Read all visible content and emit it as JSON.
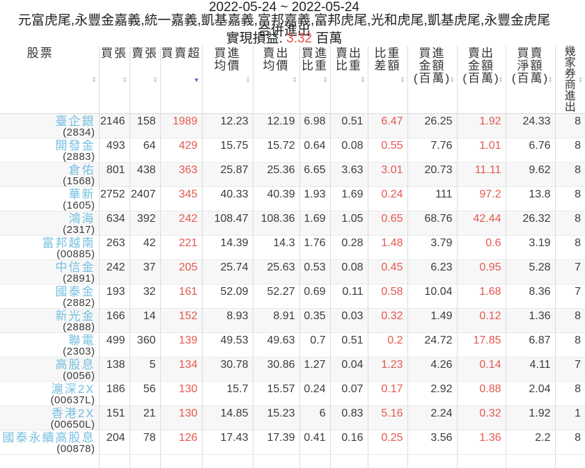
{
  "header": {
    "date_range": "2022-05-24 ~ 2022-05-24",
    "brokers": "元富虎尾,永豐金嘉義,統一嘉義,凱基嘉義,富邦嘉義,富邦虎尾,光和虎尾,凱基虎尾,永豐金虎尾",
    "merged_title": "合併進出",
    "profit_label": "實現損益:",
    "profit_value": "3.32",
    "profit_unit": "百萬"
  },
  "colors": {
    "negative_red": "#e6574f",
    "stock_link_blue": "#76bfe0",
    "active_sort_indigo": "#5b66c4",
    "stripe_gray": "#f7f7f7"
  },
  "table": {
    "red_value_indices": [
      2,
      7,
      9
    ],
    "columns": [
      {
        "key": "stock",
        "label": "股票",
        "sort": "none"
      },
      {
        "key": "buy_lots",
        "label": "買張",
        "sort": "none"
      },
      {
        "key": "sell_lots",
        "label": "賣張",
        "sort": "none"
      },
      {
        "key": "net_lots",
        "label": "買賣超",
        "sort": "desc"
      },
      {
        "key": "avg_buy_price",
        "label": "買進\n均價",
        "sort": "none"
      },
      {
        "key": "avg_sell_price",
        "label": "賣出\n均價",
        "sort": "none"
      },
      {
        "key": "buy_weight",
        "label": "買進\n比重",
        "sort": "none"
      },
      {
        "key": "sell_weight",
        "label": "賣出\n比重",
        "sort": "none"
      },
      {
        "key": "weight_diff",
        "label": "比重\n差額",
        "sort": "none"
      },
      {
        "key": "buy_amount",
        "label": "買進\n金額\n(百萬)",
        "sort": "none"
      },
      {
        "key": "sell_amount",
        "label": "賣出\n金額\n(百萬)",
        "sort": "none"
      },
      {
        "key": "net_amount",
        "label": "買賣\n淨額\n(百萬)",
        "sort": "none"
      },
      {
        "key": "broker_count",
        "label": "幾\n家\n券\n商\n進\n出",
        "sort": "none"
      }
    ],
    "rows": [
      {
        "name": "臺企銀",
        "code": "(2834)",
        "values": [
          "2146",
          "158",
          "1989",
          "12.23",
          "12.19",
          "6.98",
          "0.51",
          "6.47",
          "26.25",
          "1.92",
          "24.33",
          "8"
        ]
      },
      {
        "name": "開發金",
        "code": "(2883)",
        "values": [
          "493",
          "64",
          "429",
          "15.75",
          "15.72",
          "0.64",
          "0.08",
          "0.55",
          "7.76",
          "1.01",
          "6.76",
          "8"
        ]
      },
      {
        "name": "倉佑",
        "code": "(1568)",
        "values": [
          "801",
          "438",
          "363",
          "25.87",
          "25.36",
          "6.65",
          "3.63",
          "3.01",
          "20.73",
          "11.11",
          "9.62",
          "8"
        ]
      },
      {
        "name": "華新",
        "code": "(1605)",
        "values": [
          "2752",
          "2407",
          "345",
          "40.33",
          "40.39",
          "1.93",
          "1.69",
          "0.24",
          "111",
          "97.2",
          "13.8",
          "8"
        ]
      },
      {
        "name": "鴻海",
        "code": "(2317)",
        "values": [
          "634",
          "392",
          "242",
          "108.47",
          "108.36",
          "1.69",
          "1.05",
          "0.65",
          "68.76",
          "42.44",
          "26.32",
          "8"
        ]
      },
      {
        "name": "富邦越南",
        "code": "(00885)",
        "values": [
          "263",
          "42",
          "221",
          "14.39",
          "14.3",
          "1.76",
          "0.28",
          "1.48",
          "3.79",
          "0.6",
          "3.19",
          "8"
        ]
      },
      {
        "name": "中信金",
        "code": "(2891)",
        "values": [
          "242",
          "37",
          "205",
          "25.74",
          "25.63",
          "0.53",
          "0.08",
          "0.45",
          "6.23",
          "0.95",
          "5.28",
          "7"
        ]
      },
      {
        "name": "國泰金",
        "code": "(2882)",
        "values": [
          "193",
          "32",
          "161",
          "52.09",
          "52.27",
          "0.69",
          "0.11",
          "0.58",
          "10.04",
          "1.68",
          "8.36",
          "7"
        ]
      },
      {
        "name": "新光金",
        "code": "(2888)",
        "values": [
          "166",
          "14",
          "152",
          "8.93",
          "8.91",
          "0.35",
          "0.03",
          "0.32",
          "1.49",
          "0.12",
          "1.36",
          "8"
        ]
      },
      {
        "name": "聯電",
        "code": "(2303)",
        "values": [
          "499",
          "360",
          "139",
          "49.53",
          "49.63",
          "0.7",
          "0.51",
          "0.2",
          "24.72",
          "17.85",
          "6.87",
          "8"
        ]
      },
      {
        "name": "高股息",
        "code": "(0056)",
        "values": [
          "138",
          "5",
          "134",
          "30.78",
          "30.86",
          "1.27",
          "0.04",
          "1.23",
          "4.26",
          "0.14",
          "4.11",
          "7"
        ]
      },
      {
        "name": "滬深2X",
        "code": "(00637L)",
        "values": [
          "186",
          "56",
          "130",
          "15.7",
          "15.57",
          "0.24",
          "0.07",
          "0.17",
          "2.92",
          "0.88",
          "2.04",
          "8"
        ]
      },
      {
        "name": "香港2X",
        "code": "(00650L)",
        "values": [
          "151",
          "21",
          "130",
          "14.85",
          "15.23",
          "6",
          "0.83",
          "5.16",
          "2.24",
          "0.32",
          "1.92",
          "1"
        ]
      },
      {
        "name": "國泰永續高股息",
        "code": "(00878)",
        "values": [
          "204",
          "78",
          "126",
          "17.43",
          "17.39",
          "0.41",
          "0.16",
          "0.25",
          "3.56",
          "1.36",
          "2.2",
          "8"
        ]
      }
    ]
  }
}
